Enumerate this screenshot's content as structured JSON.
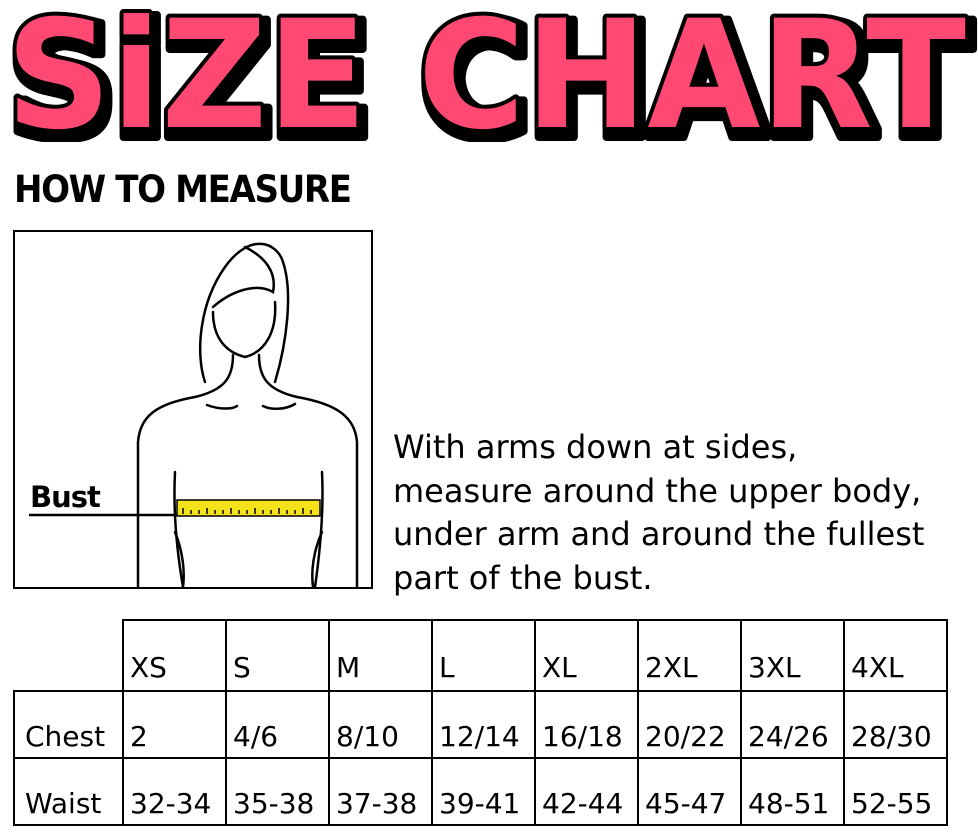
{
  "title": "SiZE CHART",
  "colors": {
    "title_fill": "#FF4A73",
    "title_outline": "#000000",
    "tape": "#F5E21A"
  },
  "how_to_measure": {
    "heading": "HOW TO MEASURE",
    "diagram_label": "Bust",
    "instructions": [
      "With arms down at sides,",
      "measure around the upper body,",
      "under arm and around the fullest",
      "part of the bust."
    ]
  },
  "table": {
    "sizes": [
      "XS",
      "S",
      "M",
      "L",
      "XL",
      "2XL",
      "3XL",
      "4XL"
    ],
    "rows": [
      {
        "label": "Chest",
        "values": [
          "2",
          "4/6",
          "8/10",
          "12/14",
          "16/18",
          "20/22",
          "24/26",
          "28/30"
        ]
      },
      {
        "label": "Waist",
        "values": [
          "32-34",
          "35-38",
          "37-38",
          "39-41",
          "42-44",
          "45-47",
          "48-51",
          "52-55"
        ]
      }
    ]
  }
}
